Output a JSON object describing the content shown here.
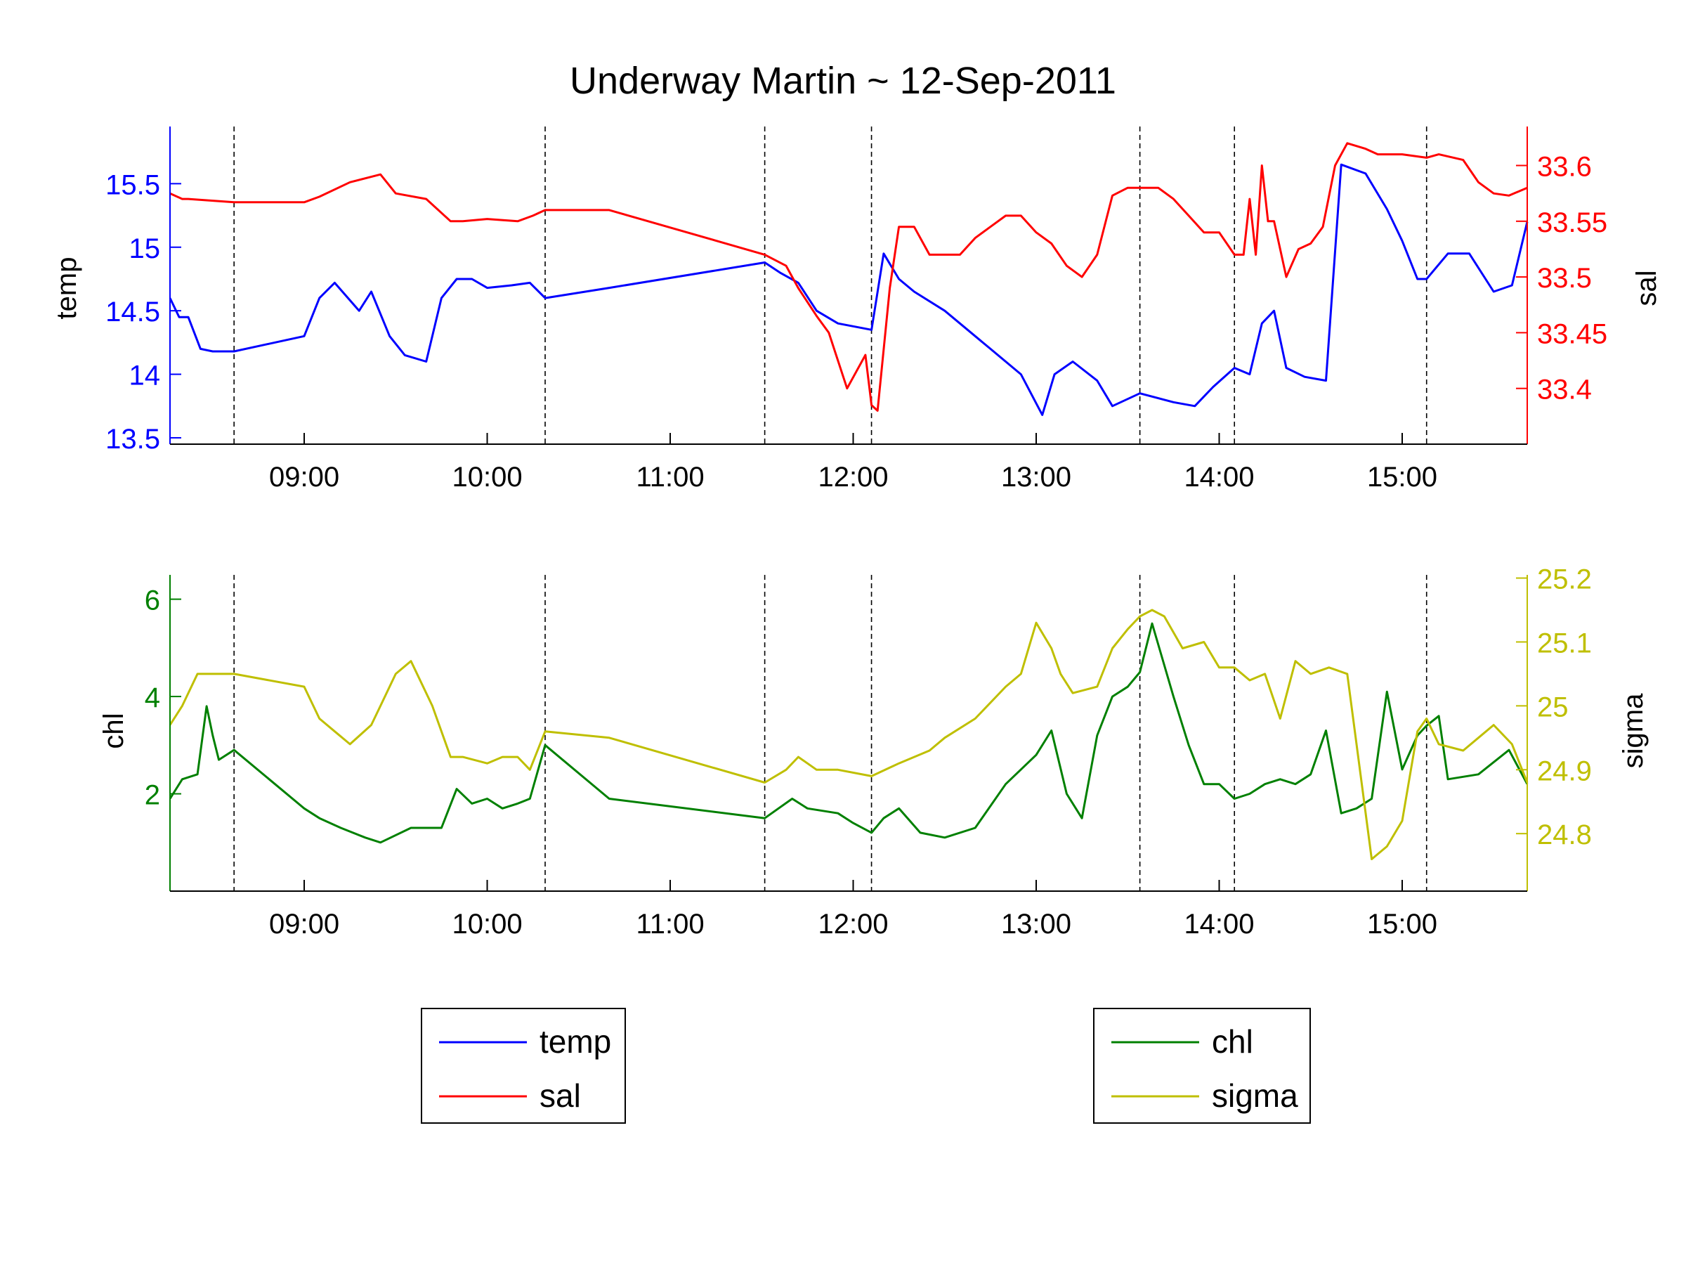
{
  "title": "Underway Martin ~ 12-Sep-2011",
  "colors": {
    "temp": "#0000ff",
    "sal": "#ff0000",
    "chl": "#008000",
    "sigma": "#bfbf00",
    "axis": "#000000",
    "vline": "#000000"
  },
  "chart_data": [
    {
      "type": "line",
      "x_axis": {
        "type": "time",
        "range": [
          "08:16",
          "15:41"
        ],
        "ticks": [
          "09:00",
          "10:00",
          "11:00",
          "12:00",
          "13:00",
          "14:00",
          "15:00"
        ]
      },
      "vertical_markers": [
        "08:37",
        "10:19",
        "11:31",
        "12:06",
        "13:34",
        "14:05",
        "15:08"
      ],
      "left_axis": {
        "label": "temp",
        "range": [
          13.45,
          15.95
        ],
        "ticks": [
          "13.5",
          "14",
          "14.5",
          "15",
          "15.5"
        ]
      },
      "right_axis": {
        "label": "sal",
        "range": [
          33.35,
          33.635
        ],
        "ticks": [
          "33.4",
          "33.45",
          "33.5",
          "33.55",
          "33.6"
        ]
      },
      "legend": {
        "placement": "bottom-left",
        "entries": [
          "temp",
          "sal"
        ]
      },
      "grid": false,
      "series": [
        {
          "name": "temp",
          "axis": "left",
          "x": [
            "08:16",
            "08:19",
            "08:22",
            "08:26",
            "08:30",
            "08:37",
            "09:00",
            "09:05",
            "09:10",
            "09:18",
            "09:22",
            "09:28",
            "09:33",
            "09:40",
            "09:45",
            "09:50",
            "09:55",
            "10:00",
            "10:08",
            "10:14",
            "10:19",
            "10:40",
            "11:31",
            "11:36",
            "11:42",
            "11:48",
            "11:55",
            "12:06",
            "12:10",
            "12:15",
            "12:20",
            "12:30",
            "12:45",
            "12:55",
            "13:02",
            "13:06",
            "13:12",
            "13:20",
            "13:25",
            "13:34",
            "13:45",
            "13:52",
            "13:58",
            "14:05",
            "14:10",
            "14:14",
            "14:18",
            "14:22",
            "14:28",
            "14:35",
            "14:40",
            "14:48",
            "14:55",
            "15:00",
            "15:05",
            "15:08",
            "15:15",
            "15:22",
            "15:30",
            "15:36",
            "15:41"
          ],
          "y": [
            14.6,
            14.45,
            14.45,
            14.2,
            14.18,
            14.18,
            14.3,
            14.6,
            14.72,
            14.5,
            14.65,
            14.3,
            14.15,
            14.1,
            14.6,
            14.75,
            14.75,
            14.68,
            14.7,
            14.72,
            14.6,
            14.68,
            14.88,
            14.8,
            14.72,
            14.5,
            14.4,
            14.35,
            14.95,
            14.75,
            14.65,
            14.5,
            14.2,
            14.0,
            13.68,
            14.0,
            14.1,
            13.95,
            13.75,
            13.85,
            13.78,
            13.75,
            13.9,
            14.05,
            14.0,
            14.4,
            14.5,
            14.05,
            13.98,
            13.95,
            15.65,
            15.58,
            15.3,
            15.05,
            14.75,
            14.75,
            14.95,
            14.95,
            14.65,
            14.7,
            15.2
          ]
        },
        {
          "name": "sal",
          "axis": "right",
          "x": [
            "08:16",
            "08:20",
            "08:22",
            "08:37",
            "09:00",
            "09:05",
            "09:15",
            "09:25",
            "09:30",
            "09:40",
            "09:48",
            "09:52",
            "10:00",
            "10:10",
            "10:15",
            "10:19",
            "10:40",
            "11:31",
            "11:38",
            "11:42",
            "11:48",
            "11:52",
            "11:58",
            "12:00",
            "12:04",
            "12:06",
            "12:08",
            "12:12",
            "12:15",
            "12:20",
            "12:25",
            "12:35",
            "12:40",
            "12:45",
            "12:50",
            "12:55",
            "13:00",
            "13:05",
            "13:10",
            "13:15",
            "13:20",
            "13:25",
            "13:30",
            "13:34",
            "13:40",
            "13:45",
            "13:50",
            "13:55",
            "14:00",
            "14:05",
            "14:08",
            "14:10",
            "14:12",
            "14:14",
            "14:16",
            "14:18",
            "14:22",
            "14:26",
            "14:30",
            "14:34",
            "14:38",
            "14:42",
            "14:48",
            "14:52",
            "15:00",
            "15:08",
            "15:12",
            "15:20",
            "15:25",
            "15:30",
            "15:35",
            "15:41"
          ],
          "y": [
            33.575,
            33.57,
            33.57,
            33.567,
            33.567,
            33.572,
            33.585,
            33.592,
            33.575,
            33.57,
            33.55,
            33.55,
            33.552,
            33.55,
            33.555,
            33.56,
            33.56,
            33.52,
            33.51,
            33.49,
            33.465,
            33.45,
            33.4,
            33.41,
            33.43,
            33.385,
            33.38,
            33.49,
            33.545,
            33.545,
            33.52,
            33.52,
            33.535,
            33.545,
            33.555,
            33.555,
            33.54,
            33.53,
            33.51,
            33.5,
            33.52,
            33.573,
            33.58,
            33.58,
            33.58,
            33.57,
            33.555,
            33.54,
            33.54,
            33.52,
            33.52,
            33.57,
            33.52,
            33.6,
            33.55,
            33.55,
            33.5,
            33.525,
            33.53,
            33.545,
            33.6,
            33.62,
            33.615,
            33.61,
            33.61,
            33.607,
            33.61,
            33.605,
            33.585,
            33.575,
            33.573,
            33.58
          ]
        }
      ]
    },
    {
      "type": "line",
      "x_axis": {
        "type": "time",
        "range": [
          "08:16",
          "15:41"
        ],
        "ticks": [
          "09:00",
          "10:00",
          "11:00",
          "12:00",
          "13:00",
          "14:00",
          "15:00"
        ]
      },
      "vertical_markers": [
        "08:37",
        "10:19",
        "11:31",
        "12:06",
        "13:34",
        "14:05",
        "15:08"
      ],
      "left_axis": {
        "label": "chl",
        "range": [
          0.0,
          6.5
        ],
        "ticks": [
          "2",
          "4",
          "6"
        ]
      },
      "right_axis": {
        "label": "sigma",
        "range": [
          24.71,
          25.205
        ],
        "ticks": [
          "24.8",
          "24.9",
          "25",
          "25.1",
          "25.2"
        ]
      },
      "legend": {
        "placement": "bottom-right",
        "entries": [
          "chl",
          "sigma"
        ]
      },
      "grid": false,
      "series": [
        {
          "name": "chl",
          "axis": "left",
          "x": [
            "08:16",
            "08:20",
            "08:25",
            "08:28",
            "08:30",
            "08:32",
            "08:37",
            "09:00",
            "09:05",
            "09:12",
            "09:20",
            "09:25",
            "09:35",
            "09:45",
            "09:50",
            "09:55",
            "10:00",
            "10:05",
            "10:10",
            "10:14",
            "10:19",
            "10:40",
            "11:31",
            "11:40",
            "11:45",
            "11:55",
            "12:00",
            "12:06",
            "12:10",
            "12:15",
            "12:22",
            "12:30",
            "12:40",
            "12:50",
            "12:55",
            "13:00",
            "13:05",
            "13:10",
            "13:15",
            "13:20",
            "13:25",
            "13:30",
            "13:34",
            "13:38",
            "13:45",
            "13:50",
            "13:55",
            "14:00",
            "14:05",
            "14:10",
            "14:15",
            "14:20",
            "14:25",
            "14:30",
            "14:35",
            "14:40",
            "14:45",
            "14:50",
            "14:55",
            "15:00",
            "15:05",
            "15:08",
            "15:12",
            "15:15",
            "15:25",
            "15:35",
            "15:41"
          ],
          "y": [
            1.9,
            2.3,
            2.4,
            3.8,
            3.2,
            2.7,
            2.9,
            1.7,
            1.5,
            1.3,
            1.1,
            1.0,
            1.3,
            1.3,
            2.1,
            1.8,
            1.9,
            1.7,
            1.8,
            1.9,
            3.0,
            1.9,
            1.5,
            1.9,
            1.7,
            1.6,
            1.4,
            1.2,
            1.5,
            1.7,
            1.2,
            1.1,
            1.3,
            2.2,
            2.5,
            2.8,
            3.3,
            2.0,
            1.5,
            3.2,
            4.0,
            4.2,
            4.5,
            5.5,
            4.0,
            3.0,
            2.2,
            2.2,
            1.9,
            2.0,
            2.2,
            2.3,
            2.2,
            2.4,
            3.3,
            1.6,
            1.7,
            1.9,
            4.1,
            2.5,
            3.2,
            3.4,
            3.6,
            2.3,
            2.4,
            2.9,
            2.2
          ]
        },
        {
          "name": "sigma",
          "axis": "right",
          "x": [
            "08:16",
            "08:20",
            "08:25",
            "08:30",
            "08:37",
            "09:00",
            "09:05",
            "09:10",
            "09:15",
            "09:22",
            "09:25",
            "09:30",
            "09:35",
            "09:42",
            "09:48",
            "09:52",
            "10:00",
            "10:05",
            "10:10",
            "10:14",
            "10:19",
            "10:40",
            "11:31",
            "11:38",
            "11:42",
            "11:48",
            "11:55",
            "12:06",
            "12:15",
            "12:25",
            "12:30",
            "12:40",
            "12:50",
            "12:55",
            "13:00",
            "13:05",
            "13:08",
            "13:12",
            "13:20",
            "13:25",
            "13:30",
            "13:34",
            "13:38",
            "13:42",
            "13:48",
            "13:55",
            "14:00",
            "14:05",
            "14:10",
            "14:15",
            "14:20",
            "14:25",
            "14:30",
            "14:36",
            "14:42",
            "14:50",
            "14:55",
            "15:00",
            "15:05",
            "15:08",
            "15:12",
            "15:20",
            "15:25",
            "15:30",
            "15:36",
            "15:41"
          ],
          "y": [
            24.97,
            25.0,
            25.05,
            25.05,
            25.05,
            25.03,
            24.98,
            24.96,
            24.94,
            24.97,
            25.0,
            25.05,
            25.07,
            25.0,
            24.92,
            24.92,
            24.91,
            24.92,
            24.92,
            24.9,
            24.96,
            24.95,
            24.88,
            24.9,
            24.92,
            24.9,
            24.9,
            24.89,
            24.91,
            24.93,
            24.95,
            24.98,
            25.03,
            25.05,
            25.13,
            25.09,
            25.05,
            25.02,
            25.03,
            25.09,
            25.12,
            25.14,
            25.15,
            25.14,
            25.09,
            25.1,
            25.06,
            25.06,
            25.04,
            25.05,
            24.98,
            25.07,
            25.05,
            25.06,
            25.05,
            24.76,
            24.78,
            24.82,
            24.96,
            24.98,
            24.94,
            24.93,
            24.95,
            24.97,
            24.94,
            24.88
          ]
        }
      ]
    }
  ],
  "legend_top": {
    "items": [
      {
        "label": "temp"
      },
      {
        "label": "sal"
      }
    ]
  },
  "legend_bottom": {
    "items": [
      {
        "label": "chl"
      },
      {
        "label": "sigma"
      }
    ]
  }
}
